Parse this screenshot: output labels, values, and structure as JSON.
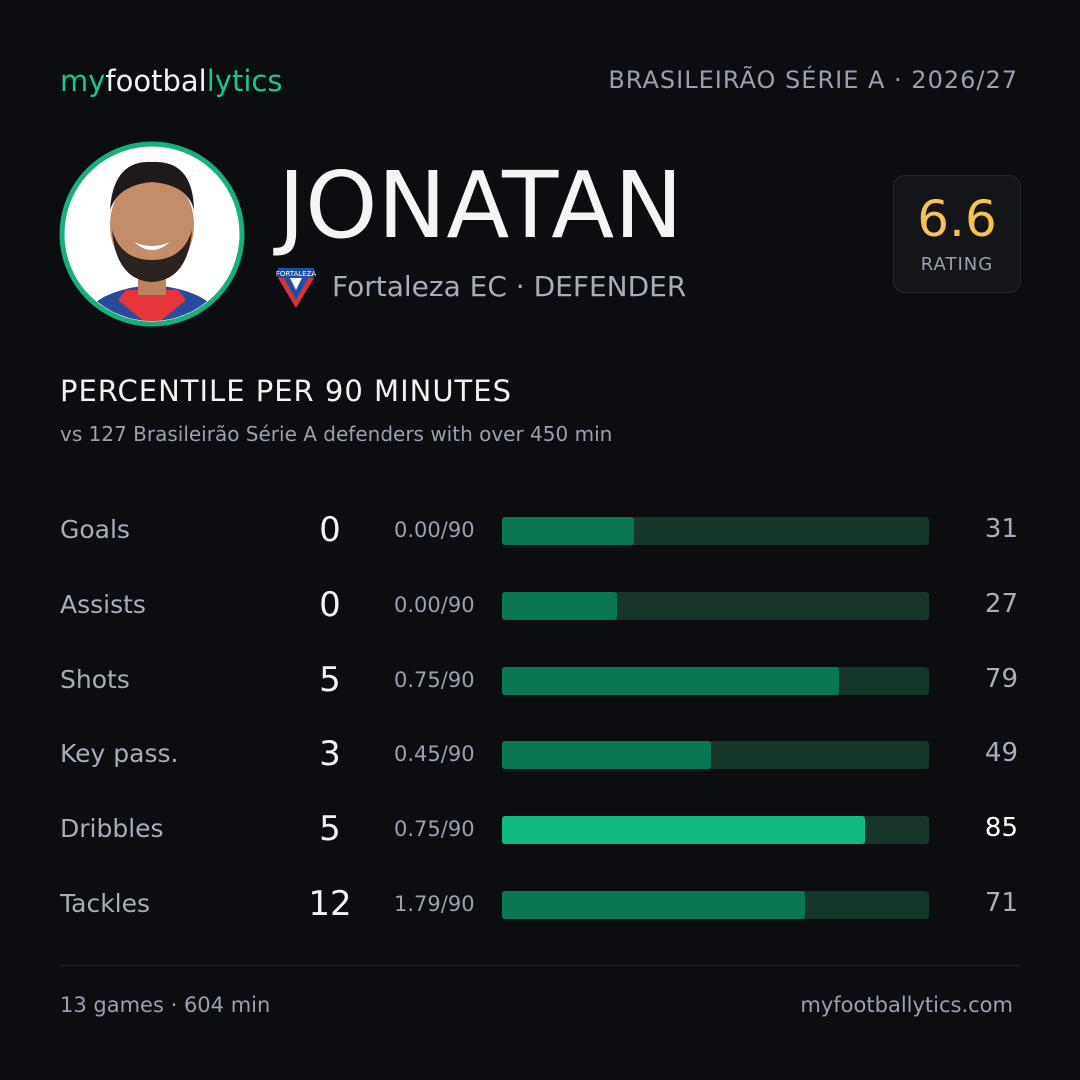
{
  "header": {
    "brand": [
      "my",
      "footbal",
      "lytics"
    ],
    "league": "BRASILEIRÃO SÉRIE A · 2026/27"
  },
  "player": {
    "name": "JONATAN",
    "club_badge": "FORTALEZA",
    "club": "Fortaleza EC · DEFENDER",
    "rating": 6.6,
    "rating_label": "RATING"
  },
  "section": {
    "title": "PERCENTILE PER 90 MINUTES",
    "subtitle": "vs 127 Brasileirão Série A defenders with over 450 min"
  },
  "stats": {
    "xlim": [
      0,
      100
    ],
    "rows": [
      {
        "label": "Goals",
        "total": 0,
        "per90": "0.00/90",
        "percentile": 31
      },
      {
        "label": "Assists",
        "total": 0,
        "per90": "0.00/90",
        "percentile": 27
      },
      {
        "label": "Shots",
        "total": 5,
        "per90": "0.75/90",
        "percentile": 79
      },
      {
        "label": "Key pass.",
        "total": 3,
        "per90": "0.45/90",
        "percentile": 49
      },
      {
        "label": "Dribbles",
        "total": 5,
        "per90": "0.75/90",
        "percentile": 85,
        "highlight": true
      },
      {
        "label": "Tackles",
        "total": 12,
        "per90": "1.79/90",
        "percentile": 71
      }
    ]
  },
  "footer": {
    "left": "13 games · 604 min",
    "right": "myfootballytics.com"
  }
}
